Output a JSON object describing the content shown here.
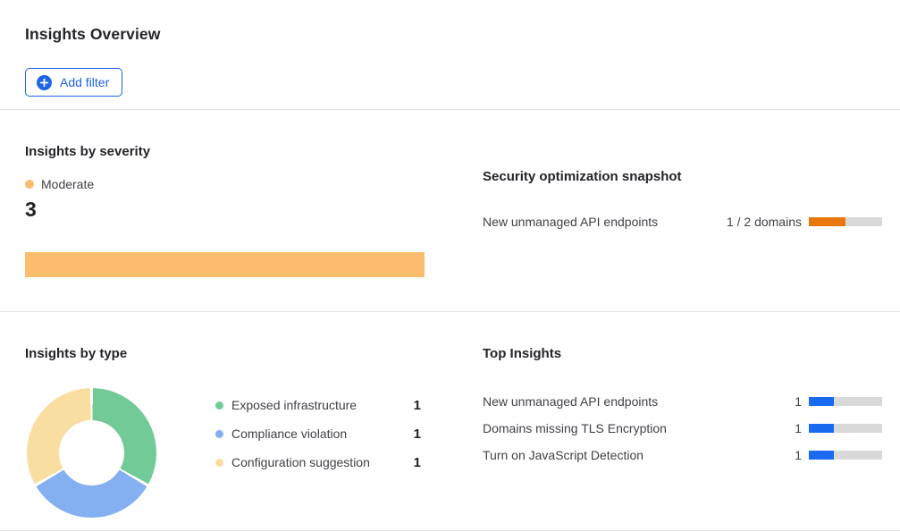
{
  "page": {
    "title": "Insights Overview"
  },
  "toolbar": {
    "add_filter_label": "Add filter",
    "accent_blue": "#1e64e8"
  },
  "severity_section": {
    "title": "Insights by severity",
    "legend": {
      "label": "Moderate",
      "color": "#f9bd6d"
    },
    "count": "3",
    "bar_color": "#f9bd6d"
  },
  "snapshot_section": {
    "title": "Security optimization snapshot",
    "rows": [
      {
        "label": "New unmanaged API endpoints",
        "value_text": "1 / 2 domains",
        "percent": 50,
        "fill_color": "#e8770e",
        "track_color": "#d9d9d9"
      }
    ]
  },
  "type_section": {
    "title": "Insights by type",
    "chart": {
      "segments": [
        {
          "label": "Exposed infrastructure",
          "value": 1,
          "color": "#72ca96"
        },
        {
          "label": "Compliance violation",
          "value": 1,
          "color": "#84aff1"
        },
        {
          "label": "Configuration suggestion",
          "value": 1,
          "color": "#f8dfa1"
        }
      ]
    },
    "legend": [
      {
        "label": "Exposed infrastructure",
        "value": "1",
        "color": "#72ca96"
      },
      {
        "label": "Compliance violation",
        "value": "1",
        "color": "#84aff1"
      },
      {
        "label": "Configuration suggestion",
        "value": "1",
        "color": "#f8dfa1"
      }
    ]
  },
  "top_insights_section": {
    "title": "Top Insights",
    "rows": [
      {
        "label": "New unmanaged API endpoints",
        "value": "1",
        "percent": 34,
        "fill_color": "#1a6af0",
        "track_color": "#d9d9d9"
      },
      {
        "label": "Domains missing TLS Encryption",
        "value": "1",
        "percent": 34,
        "fill_color": "#1a6af0",
        "track_color": "#d9d9d9"
      },
      {
        "label": "Turn on JavaScript Detection",
        "value": "1",
        "percent": 34,
        "fill_color": "#1a6af0",
        "track_color": "#d9d9d9"
      }
    ]
  },
  "chart_data": [
    {
      "type": "bar",
      "title": "Insights by severity",
      "orientation": "horizontal",
      "categories": [
        "Moderate"
      ],
      "values": [
        3
      ],
      "colors": [
        "#f9bd6d"
      ],
      "legend_position": "top",
      "grid": false
    },
    {
      "type": "bar",
      "title": "Security optimization snapshot",
      "orientation": "horizontal",
      "categories": [
        "New unmanaged API endpoints"
      ],
      "values": [
        1
      ],
      "xlim": [
        0,
        2
      ],
      "value_labels": [
        "1 / 2 domains"
      ],
      "colors": [
        "#e8770e"
      ],
      "grid": false
    },
    {
      "type": "pie",
      "subtype": "donut",
      "title": "Insights by type",
      "categories": [
        "Exposed infrastructure",
        "Compliance violation",
        "Configuration suggestion"
      ],
      "values": [
        1,
        1,
        1
      ],
      "colors": [
        "#72ca96",
        "#84aff1",
        "#f8dfa1"
      ],
      "legend_position": "right",
      "start_angle_deg": 0,
      "direction": "clockwise"
    },
    {
      "type": "bar",
      "title": "Top Insights",
      "orientation": "horizontal",
      "categories": [
        "New unmanaged API endpoints",
        "Domains missing TLS Encryption",
        "Turn on JavaScript Detection"
      ],
      "values": [
        1,
        1,
        1
      ],
      "xlim": [
        0,
        3
      ],
      "colors": [
        "#1a6af0"
      ],
      "grid": false
    }
  ]
}
